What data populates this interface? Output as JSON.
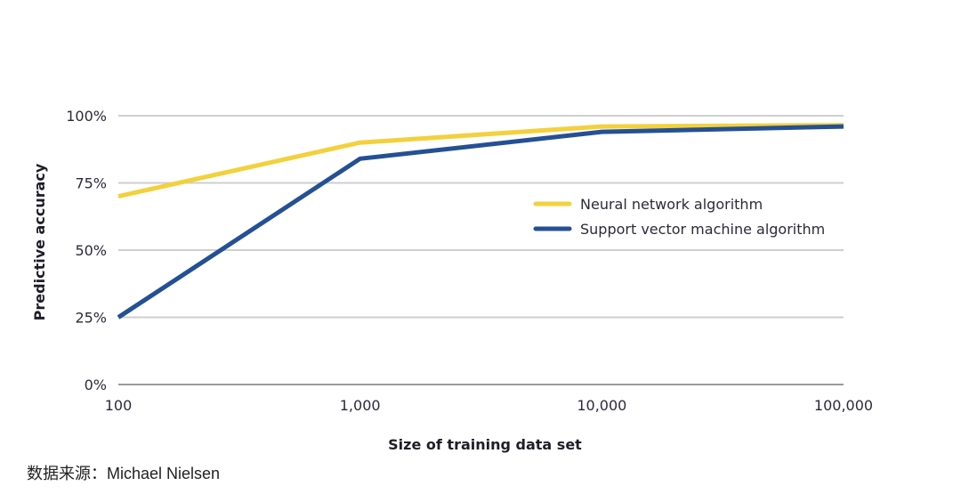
{
  "chart_data": {
    "type": "line",
    "title": "",
    "xlabel": "Size of training data set",
    "ylabel": "Predictive accuracy",
    "x": [
      100,
      1000,
      10000,
      100000
    ],
    "x_tick_labels": [
      "100",
      "1,000",
      "10,000",
      "100,000"
    ],
    "x_scale": "log",
    "y_ticks": [
      0,
      25,
      50,
      75,
      100
    ],
    "y_tick_labels": [
      "0%",
      "25%",
      "50%",
      "75%",
      "100%"
    ],
    "ylim": [
      0,
      100
    ],
    "grid": "horizontal",
    "legend_position": "right",
    "series": [
      {
        "name": "Neural network algorithm",
        "color": "#f2d13c",
        "values": [
          70,
          90,
          96,
          96.5
        ]
      },
      {
        "name": "Support vector machine algorithm",
        "color": "#245094",
        "values": [
          25,
          84,
          94,
          96
        ]
      }
    ]
  },
  "source": "数据来源：Michael Nielsen"
}
